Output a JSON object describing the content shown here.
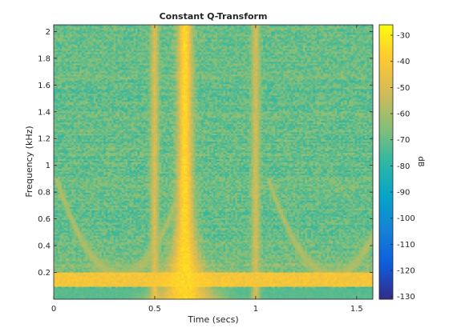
{
  "chart_data": {
    "type": "heatmap",
    "title": "Constant Q-Transform",
    "xlabel": "Time (secs)",
    "ylabel": "Frequency (kHz)",
    "colorbar_label": "dB",
    "xlim": [
      0,
      1.58
    ],
    "ylim": [
      0,
      2.05
    ],
    "clim": [
      -131,
      -26
    ],
    "x_ticks": [
      {
        "value": 0,
        "label": "0"
      },
      {
        "value": 0.5,
        "label": "0.5"
      },
      {
        "value": 1,
        "label": "1"
      },
      {
        "value": 1.5,
        "label": "1.5"
      }
    ],
    "y_ticks": [
      {
        "value": 0.2,
        "label": "0.2"
      },
      {
        "value": 0.4,
        "label": "0.4"
      },
      {
        "value": 0.6,
        "label": "0.6"
      },
      {
        "value": 0.8,
        "label": "0.8"
      },
      {
        "value": 1.0,
        "label": "1"
      },
      {
        "value": 1.2,
        "label": "1.2"
      },
      {
        "value": 1.4,
        "label": "1.4"
      },
      {
        "value": 1.6,
        "label": "1.6"
      },
      {
        "value": 1.8,
        "label": "1.8"
      },
      {
        "value": 2.0,
        "label": "2"
      }
    ],
    "colorbar_ticks": [
      {
        "value": -30,
        "label": "-30"
      },
      {
        "value": -40,
        "label": "-40"
      },
      {
        "value": -50,
        "label": "-50"
      },
      {
        "value": -60,
        "label": "-60"
      },
      {
        "value": -70,
        "label": "-70"
      },
      {
        "value": -80,
        "label": "-80"
      },
      {
        "value": -90,
        "label": "-90"
      },
      {
        "value": -100,
        "label": "-100"
      },
      {
        "value": -110,
        "label": "-110"
      },
      {
        "value": -120,
        "label": "-120"
      },
      {
        "value": -130,
        "label": "-130"
      }
    ],
    "colormap": "parula",
    "colormap_stops": [
      "#352a87",
      "#0f5cdd",
      "#1481d6",
      "#06a4ca",
      "#2eb7a4",
      "#87bf77",
      "#d1bb59",
      "#fec832",
      "#f9fb0e"
    ],
    "grid": false,
    "approx_energy_features": {
      "background_db": -70,
      "low_frequency_band": {
        "freq_range_khz": [
          0.1,
          0.2
        ],
        "level_db": -42
      },
      "broadband_events": [
        {
          "time_secs": 0.5,
          "level_db": -50
        },
        {
          "time_secs": 0.65,
          "level_db": -35
        },
        {
          "time_secs": 1.0,
          "level_db": -52
        }
      ],
      "arch_curves": [
        {
          "center_time_secs": 0.33,
          "level_db": -58
        },
        {
          "center_time_secs": 1.38,
          "level_db": -58
        }
      ]
    }
  }
}
